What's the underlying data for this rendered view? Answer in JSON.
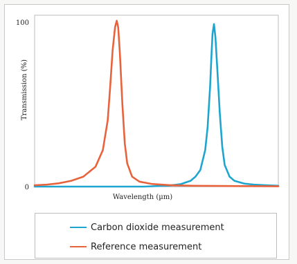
{
  "chart_data": {
    "type": "line",
    "title": "",
    "xlabel": "Wavelength (µm)",
    "ylabel": "Transmission (%)",
    "xlim": [
      0,
      100
    ],
    "ylim": [
      0,
      100
    ],
    "x_ticks": [],
    "y_ticks": [
      {
        "value": 0,
        "label": "0"
      },
      {
        "value": 100,
        "label": "100"
      }
    ],
    "grid": false,
    "legend_position": "bottom",
    "series": [
      {
        "name": "Carbon dioxide measurement",
        "color": "#1ea5cf",
        "x": [
          0,
          30,
          45,
          55,
          60,
          64,
          66,
          68,
          70,
          71,
          72,
          72.6,
          73,
          73.6,
          74.2,
          75,
          76,
          77,
          78,
          80,
          82,
          86,
          90,
          95,
          100
        ],
        "y": [
          0,
          0,
          0,
          0.6,
          1.5,
          3.5,
          6,
          10,
          22,
          36,
          60,
          80,
          92,
          98,
          90,
          70,
          44,
          24,
          13,
          6,
          3.5,
          1.8,
          1.2,
          0.8,
          0.5
        ]
      },
      {
        "name": "Reference measurement",
        "color": "#e8623c",
        "x": [
          0,
          5,
          10,
          15,
          20,
          25,
          28,
          30,
          31,
          32,
          33,
          33.7,
          34.3,
          35,
          36,
          37,
          38,
          40,
          43,
          48,
          55,
          65,
          75,
          85,
          100
        ],
        "y": [
          0.8,
          1.2,
          2,
          3.5,
          6,
          12,
          22,
          40,
          60,
          82,
          96,
          100,
          96,
          80,
          50,
          26,
          14,
          6,
          3,
          1.6,
          0.9,
          0.5,
          0.4,
          0.3,
          0.2
        ]
      }
    ]
  }
}
